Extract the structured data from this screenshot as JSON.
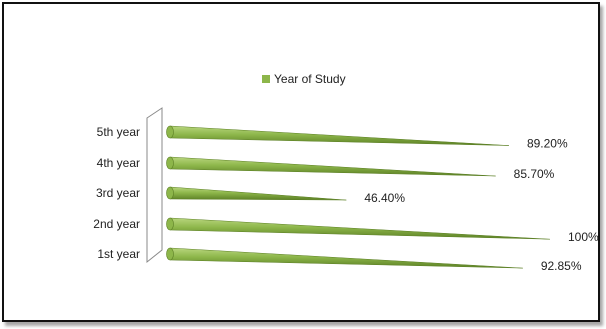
{
  "chart_data": {
    "type": "bar",
    "orientation": "horizontal",
    "style": "3d-cone",
    "categories": [
      "5th year",
      "4th year",
      "3rd year",
      "2nd year",
      "1st year"
    ],
    "series": [
      {
        "name": "Year of Study",
        "values": [
          89.2,
          85.7,
          46.4,
          100,
          92.85
        ],
        "labels": [
          "89.20%",
          "85.70%",
          "46.40%",
          "100%",
          "92.85%"
        ]
      }
    ],
    "title": "",
    "xlabel": "",
    "ylabel": "",
    "xlim": [
      0,
      100
    ],
    "grid": false,
    "legend_position": "top-center",
    "colors": {
      "bar": "#8db64a",
      "bar_dark": "#5b7f24",
      "bar_light": "#b9d67e"
    }
  }
}
